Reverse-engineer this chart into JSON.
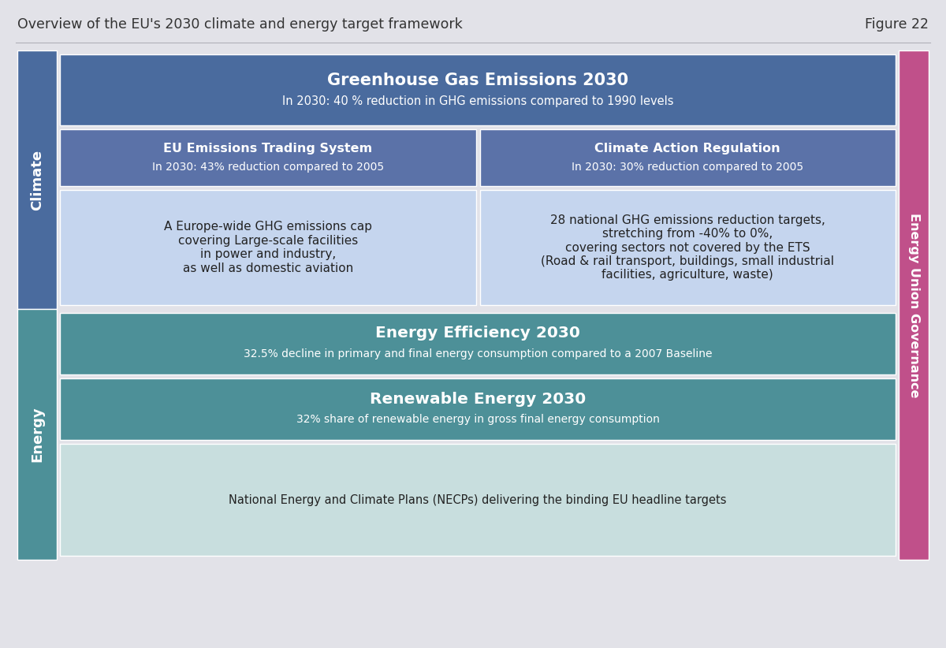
{
  "title": "Overview of the EU's 2030 climate and energy target framework",
  "figure_label": "Figure 22",
  "bg_color": "#e2e2e8",
  "title_color": "#333333",
  "title_fontsize": 12.5,
  "climate_label_color": "#4a6b9e",
  "energy_label_color": "#4d9098",
  "governance_color": "#c0508a",
  "ghg_box_color": "#4a6b9e",
  "ghg_title": "Greenhouse Gas Emissions 2030",
  "ghg_subtitle": "In 2030: 40 % reduction in GHG emissions compared to 1990 levels",
  "ets_box_color": "#5b72a8",
  "ets_title": "EU Emissions Trading System",
  "ets_subtitle": "In 2030: 43% reduction compared to 2005",
  "car_box_color": "#5b72a8",
  "car_title": "Climate Action Regulation",
  "car_subtitle": "In 2030: 30% reduction compared to 2005",
  "ets_detail_color": "#c5d5ee",
  "ets_detail_text": "A Europe-wide GHG emissions cap\ncovering Large-scale facilities\nin power and industry,\nas well as domestic aviation",
  "car_detail_color": "#c5d5ee",
  "car_detail_text": "28 national GHG emissions reduction targets,\nstretching from -40% to 0%,\ncovering sectors not covered by the ETS\n(Road & rail transport, buildings, small industrial\nfacilities, agriculture, waste)",
  "ee_box_color": "#4d9098",
  "ee_title": "Energy Efficiency 2030",
  "ee_subtitle": "32.5% decline in primary and final energy consumption compared to a 2007 Baseline",
  "re_box_color": "#4d9098",
  "re_title": "Renewable Energy 2030",
  "re_subtitle": "32% share of renewable energy in gross final energy consumption",
  "necp_color": "#c8dede",
  "necp_text": "National Energy and Climate Plans (NECPs) delivering the binding EU headline targets",
  "detail_text_color": "#222222",
  "white": "#ffffff"
}
